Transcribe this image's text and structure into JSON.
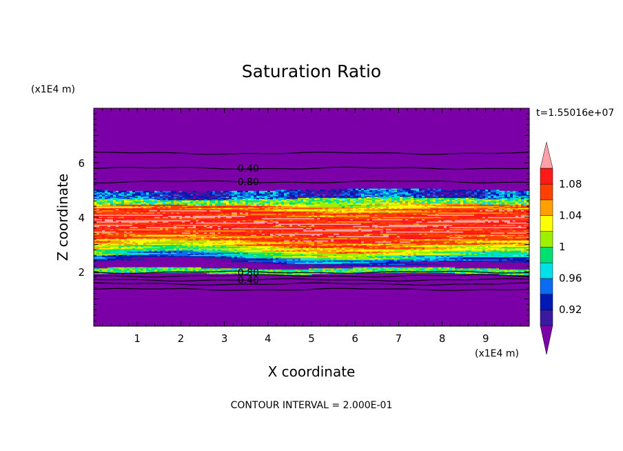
{
  "chart_data": {
    "type": "heatmap",
    "title": "Saturation Ratio",
    "xlabel": "X coordinate",
    "ylabel": "Z coordinate",
    "x_unit": "(x1E4 m)",
    "y_unit": "(x1E4 m)",
    "time_label": "t=1.55016e+07",
    "footer": "CONTOUR INTERVAL = 2.000E-01",
    "xlim": [
      0,
      10
    ],
    "ylim": [
      0,
      8
    ],
    "xticks": [
      "1",
      "2",
      "3",
      "4",
      "5",
      "6",
      "7",
      "8",
      "9"
    ],
    "yticks": [
      "2",
      "4",
      "6"
    ],
    "colorbar": {
      "levels": [
        0.9,
        0.92,
        0.94,
        0.96,
        0.98,
        1.0,
        1.02,
        1.04,
        1.06,
        1.08,
        1.1
      ],
      "tick_labels": [
        "0.92",
        "0.96",
        "1",
        "1.04",
        "1.08"
      ],
      "colors": [
        "#7b00a8",
        "#3a1aa0",
        "#0018b4",
        "#0a6cf0",
        "#00e0e8",
        "#00e070",
        "#9ef000",
        "#ffff00",
        "#ffa000",
        "#ff4000",
        "#ff1a1a",
        "#ffa0a8"
      ],
      "below_color": "#7b00a8",
      "above_color": "#ffa0a8"
    },
    "background_value": 0.3,
    "contours": [
      {
        "z": 1.35,
        "label": ""
      },
      {
        "z": 1.55,
        "label": ""
      },
      {
        "z": 1.7,
        "label": "0.40"
      },
      {
        "z": 1.85,
        "label": ""
      },
      {
        "z": 1.98,
        "label": "0.80"
      },
      {
        "z": 5.3,
        "label": "0.80"
      },
      {
        "z": 5.8,
        "label": "0.40"
      },
      {
        "z": 6.35,
        "label": ""
      }
    ],
    "cloud_layer": {
      "z_bottom": 2.0,
      "z_top": 4.9,
      "value_range": [
        0.9,
        1.1
      ]
    }
  }
}
